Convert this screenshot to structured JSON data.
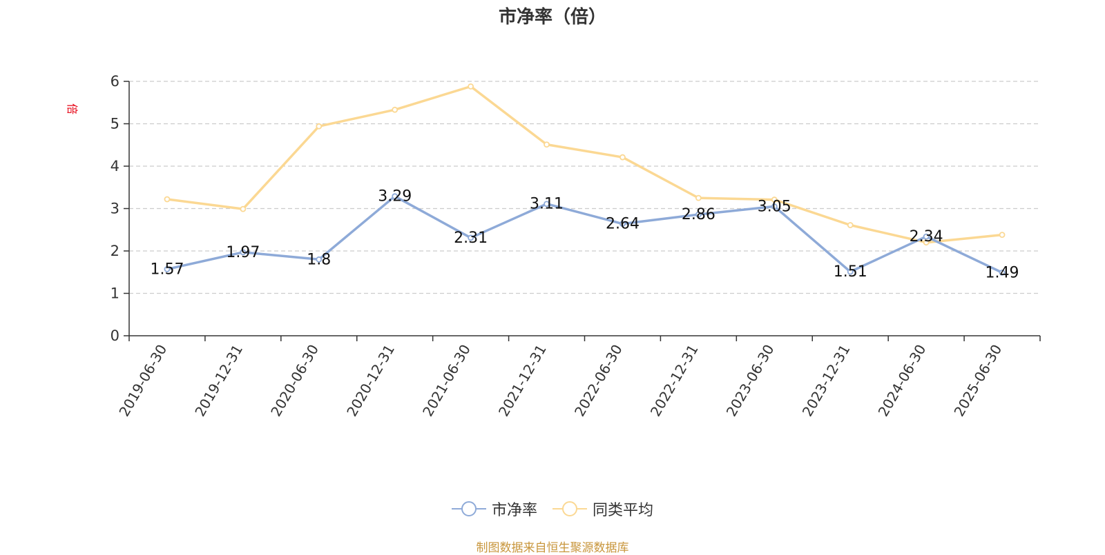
{
  "chart_data": {
    "type": "line",
    "title": "市净率（倍）",
    "ylabel": "倍",
    "ylim": [
      0,
      6
    ],
    "yticks": [
      0,
      1,
      2,
      3,
      4,
      5,
      6
    ],
    "grid": true,
    "legend_position": "bottom",
    "categories": [
      "2019-06-30",
      "2019-12-31",
      "2020-06-30",
      "2020-12-31",
      "2021-06-30",
      "2021-12-31",
      "2022-06-30",
      "2022-12-31",
      "2023-06-30",
      "2023-12-31",
      "2024-06-30",
      "2025-06-30"
    ],
    "series": [
      {
        "name": "市净率",
        "color": "#8eaad8",
        "values": [
          1.57,
          1.97,
          1.8,
          3.29,
          2.31,
          3.11,
          2.64,
          2.86,
          3.05,
          1.51,
          2.34,
          1.49
        ],
        "data_labels": [
          "1.57",
          "1.97",
          "1.8",
          "3.29",
          "2.31",
          "3.11",
          "2.64",
          "2.86",
          "3.05",
          "1.51",
          "2.34",
          "1.49"
        ]
      },
      {
        "name": "同类平均",
        "color": "#fbd893",
        "values": [
          3.22,
          2.99,
          4.94,
          5.33,
          5.88,
          4.51,
          4.21,
          3.25,
          3.21,
          2.61,
          2.2,
          2.38
        ]
      }
    ]
  },
  "ylabel_color": "#e60012",
  "source": {
    "text": "制图数据来自恒生聚源数据库",
    "color": "#c8963c"
  }
}
